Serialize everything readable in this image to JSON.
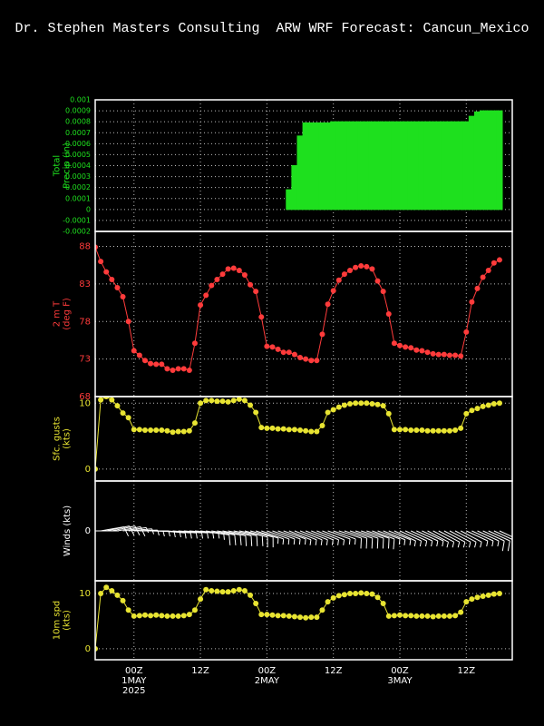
{
  "title": "Dr. Stephen Masters Consulting  ARW WRF Forecast: Cancun_Mexico",
  "chart_data": [
    {
      "type": "bar",
      "ylabel": [
        "Total",
        "Precip (in)"
      ],
      "color": "#1ee01e",
      "grid": true,
      "xlim": [
        -7,
        68.3
      ],
      "xticks": [
        0,
        12,
        24,
        36,
        48,
        60
      ],
      "ylim": [
        -0.0002,
        0.001
      ],
      "yticks": [
        -0.0002,
        -0.0001,
        0,
        0.0001,
        0.0002,
        0.0003,
        0.0004,
        0.0005,
        0.0006,
        0.0007,
        0.0008,
        0.0009,
        0.001
      ],
      "x": [
        -7,
        -6,
        -5,
        -4,
        -3,
        -2,
        -1,
        0,
        1,
        2,
        3,
        4,
        5,
        6,
        7,
        8,
        9,
        10,
        11,
        12,
        13,
        14,
        15,
        16,
        17,
        18,
        19,
        20,
        21,
        22,
        23,
        24,
        25,
        26,
        27,
        28,
        29,
        30,
        31,
        32,
        33,
        34,
        35,
        36,
        37,
        38,
        39,
        40,
        41,
        42,
        43,
        44,
        45,
        46,
        47,
        48,
        49,
        50,
        51,
        52,
        53,
        54,
        55,
        56,
        57,
        58,
        59,
        60,
        61,
        62,
        63,
        64,
        65,
        66
      ],
      "values": [
        0,
        0,
        0,
        0,
        0,
        0,
        0,
        0,
        0,
        0,
        0,
        0,
        0,
        0,
        0,
        0,
        0,
        0,
        0,
        0,
        0,
        0,
        0,
        0,
        0,
        0,
        0,
        0,
        0,
        0,
        0,
        0,
        0,
        0,
        0,
        0.00018,
        0.0004,
        0.00067,
        0.00079,
        0.00079,
        0.00079,
        0.00079,
        0.00079,
        0.0008,
        0.0008,
        0.0008,
        0.0008,
        0.0008,
        0.0008,
        0.0008,
        0.0008,
        0.0008,
        0.0008,
        0.0008,
        0.0008,
        0.0008,
        0.0008,
        0.0008,
        0.0008,
        0.0008,
        0.0008,
        0.0008,
        0.0008,
        0.0008,
        0.0008,
        0.0008,
        0.0008,
        0.0008,
        0.00085,
        0.00089,
        0.0009,
        0.0009,
        0.0009,
        0.0009
      ]
    },
    {
      "type": "line",
      "ylabel": [
        "2 m T",
        "(deg F)"
      ],
      "color": "#ff3b3b",
      "grid": true,
      "xlim": [
        -7,
        68.3
      ],
      "xticks": [
        0,
        12,
        24,
        36,
        48,
        60
      ],
      "ylim": [
        68,
        90
      ],
      "yticks": [
        68,
        73,
        78,
        83,
        88
      ],
      "x": [
        -7,
        -6,
        -5,
        -4,
        -3,
        -2,
        -1,
        0,
        1,
        2,
        3,
        4,
        5,
        6,
        7,
        8,
        9,
        10,
        11,
        12,
        13,
        14,
        15,
        16,
        17,
        18,
        19,
        20,
        21,
        22,
        23,
        24,
        25,
        26,
        27,
        28,
        29,
        30,
        31,
        32,
        33,
        34,
        35,
        36,
        37,
        38,
        39,
        40,
        41,
        42,
        43,
        44,
        45,
        46,
        47,
        48,
        49,
        50,
        51,
        52,
        53,
        54,
        55,
        56,
        57,
        58,
        59,
        60,
        61,
        62,
        63,
        64,
        65,
        66
      ],
      "values": [
        87.9,
        86,
        84.6,
        83.6,
        82.5,
        81.3,
        78,
        74.1,
        73.5,
        72.8,
        72.4,
        72.3,
        72.3,
        71.7,
        71.5,
        71.7,
        71.7,
        71.5,
        75.1,
        80.2,
        81.5,
        82.8,
        83.6,
        84.3,
        85,
        85.1,
        84.8,
        84.2,
        82.9,
        82,
        78.6,
        74.7,
        74.6,
        74.3,
        73.9,
        73.9,
        73.6,
        73.2,
        73,
        72.8,
        72.8,
        76.3,
        80.3,
        82.1,
        83.5,
        84.3,
        84.8,
        85.2,
        85.4,
        85.3,
        85,
        83.4,
        82,
        79,
        75.1,
        74.8,
        74.6,
        74.5,
        74.2,
        74.1,
        73.9,
        73.7,
        73.6,
        73.6,
        73.5,
        73.5,
        73.4,
        76.6,
        80.6,
        82.4,
        83.9,
        84.8,
        85.8,
        86.2
      ]
    },
    {
      "type": "line",
      "ylabel": [
        "Sfc. gusts",
        "(kts)"
      ],
      "color": "#e8e432",
      "grid": true,
      "xlim": [
        -7,
        68.3
      ],
      "xticks": [
        0,
        12,
        24,
        36,
        48,
        60
      ],
      "ylim": [
        -1.8,
        11
      ],
      "yticks": [
        0,
        10
      ],
      "x": [
        -7,
        -6,
        -5,
        -4,
        -3,
        -2,
        -1,
        0,
        1,
        2,
        3,
        4,
        5,
        6,
        7,
        8,
        9,
        10,
        11,
        12,
        13,
        14,
        15,
        16,
        17,
        18,
        19,
        20,
        21,
        22,
        23,
        24,
        25,
        26,
        27,
        28,
        29,
        30,
        31,
        32,
        33,
        34,
        35,
        36,
        37,
        38,
        39,
        40,
        41,
        42,
        43,
        44,
        45,
        46,
        47,
        48,
        49,
        50,
        51,
        52,
        53,
        54,
        55,
        56,
        57,
        58,
        59,
        60,
        61,
        62,
        63,
        64,
        65,
        66
      ],
      "values": [
        0,
        10.5,
        11,
        10.5,
        9.6,
        8.5,
        7.8,
        6,
        6,
        5.9,
        5.9,
        5.9,
        5.9,
        5.8,
        5.6,
        5.7,
        5.7,
        5.8,
        7,
        10,
        10.4,
        10.4,
        10.3,
        10.3,
        10.2,
        10.4,
        10.6,
        10.4,
        9.7,
        8.6,
        6.3,
        6.2,
        6.2,
        6.1,
        6.1,
        6,
        6,
        5.9,
        5.8,
        5.7,
        5.7,
        6.6,
        8.6,
        9,
        9.4,
        9.7,
        9.9,
        10,
        10,
        10,
        9.9,
        9.8,
        9.6,
        8.4,
        6,
        6,
        6,
        5.9,
        5.9,
        5.9,
        5.8,
        5.8,
        5.8,
        5.8,
        5.8,
        5.9,
        6.2,
        8.4,
        8.9,
        9.2,
        9.5,
        9.7,
        9.9,
        10
      ]
    },
    {
      "type": "barb",
      "ylabel": [
        "Winds (kts)"
      ],
      "color": "#ffffff",
      "grid": false,
      "xlim": [
        -7,
        68.3
      ],
      "xticks": [
        0,
        12,
        24,
        36,
        48,
        60
      ],
      "ylim": [
        -1,
        1
      ],
      "yticks": [
        0
      ],
      "x": [
        -7,
        -6,
        -5,
        -4,
        -3,
        -2,
        -1,
        0,
        1,
        2,
        3,
        4,
        5,
        6,
        7,
        8,
        9,
        10,
        11,
        12,
        13,
        14,
        15,
        16,
        17,
        18,
        19,
        20,
        21,
        22,
        23,
        24,
        25,
        26,
        27,
        28,
        29,
        30,
        31,
        32,
        33,
        34,
        35,
        36,
        37,
        38,
        39,
        40,
        41,
        42,
        43,
        44,
        45,
        46,
        47,
        48,
        49,
        50,
        51,
        52,
        53,
        54,
        55,
        56,
        57,
        58,
        59,
        60,
        61,
        62,
        63,
        64,
        65,
        66
      ],
      "values": [
        0,
        10,
        11.1,
        10.5,
        9.7,
        8.7,
        7,
        5.9,
        6,
        6.1,
        6,
        6.1,
        6,
        5.9,
        5.9,
        5.9,
        6,
        6.2,
        7,
        9,
        10.7,
        10.5,
        10.4,
        10.3,
        10.3,
        10.5,
        10.7,
        10.5,
        9.7,
        8.2,
        6.2,
        6.2,
        6.1,
        6,
        6,
        5.9,
        5.8,
        5.7,
        5.6,
        5.7,
        5.7,
        7,
        8.5,
        9.2,
        9.6,
        9.8,
        10,
        10,
        10.1,
        10,
        9.9,
        9.3,
        8.2,
        5.9,
        6,
        6.1,
        6,
        6,
        5.9,
        5.9,
        5.9,
        5.8,
        5.9,
        5.9,
        5.9,
        6,
        6.6,
        8.5,
        9,
        9.3,
        9.5,
        9.7,
        9.9,
        10
      ],
      "directions": [
        90,
        80,
        78,
        78,
        80,
        82,
        85,
        88,
        90,
        90,
        92,
        92,
        95,
        95,
        95,
        95,
        95,
        95,
        95,
        98,
        100,
        100,
        100,
        102,
        102,
        102,
        102,
        105,
        105,
        108,
        110,
        110,
        110,
        110,
        110,
        112,
        112,
        112,
        112,
        112,
        112,
        112,
        110,
        110,
        108,
        108,
        108,
        108,
        108,
        108,
        110,
        110,
        112,
        112,
        115,
        115,
        115,
        115,
        115,
        115,
        118,
        118,
        118,
        118,
        118,
        118,
        118,
        115,
        115,
        115,
        115,
        115,
        115,
        115
      ]
    },
    {
      "type": "line",
      "ylabel": [
        "10m spd",
        "(kts)"
      ],
      "color": "#e8e432",
      "grid": true,
      "xlim": [
        -7,
        68.3
      ],
      "xticks": [
        {
          "value": 0,
          "label": "00Z"
        },
        {
          "value": 12,
          "label": "12Z"
        },
        {
          "value": 24,
          "label": "00Z"
        },
        {
          "value": 36,
          "label": "12Z"
        },
        {
          "value": 48,
          "label": "00Z"
        },
        {
          "value": 60,
          "label": "12Z"
        }
      ],
      "x_date_labels": [
        {
          "value": 0,
          "label": "1MAY"
        },
        {
          "value": 24,
          "label": "2MAY"
        },
        {
          "value": 48,
          "label": "3MAY"
        }
      ],
      "x_year_label": {
        "value": 0,
        "label": "2025"
      },
      "ylim": [
        -2,
        12.3
      ],
      "yticks": [
        0,
        10
      ],
      "x": [
        -7,
        -6,
        -5,
        -4,
        -3,
        -2,
        -1,
        0,
        1,
        2,
        3,
        4,
        5,
        6,
        7,
        8,
        9,
        10,
        11,
        12,
        13,
        14,
        15,
        16,
        17,
        18,
        19,
        20,
        21,
        22,
        23,
        24,
        25,
        26,
        27,
        28,
        29,
        30,
        31,
        32,
        33,
        34,
        35,
        36,
        37,
        38,
        39,
        40,
        41,
        42,
        43,
        44,
        45,
        46,
        47,
        48,
        49,
        50,
        51,
        52,
        53,
        54,
        55,
        56,
        57,
        58,
        59,
        60,
        61,
        62,
        63,
        64,
        65,
        66
      ],
      "values": [
        0,
        10,
        11.1,
        10.5,
        9.7,
        8.7,
        7,
        5.9,
        6,
        6.1,
        6,
        6.1,
        6,
        5.9,
        5.9,
        5.9,
        6,
        6.2,
        7,
        9,
        10.7,
        10.5,
        10.4,
        10.3,
        10.3,
        10.5,
        10.7,
        10.5,
        9.7,
        8.2,
        6.2,
        6.2,
        6.1,
        6,
        6,
        5.9,
        5.8,
        5.7,
        5.6,
        5.7,
        5.7,
        7,
        8.5,
        9.2,
        9.6,
        9.8,
        10,
        10,
        10.1,
        10,
        9.9,
        9.3,
        8.2,
        5.9,
        6,
        6.1,
        6,
        6,
        5.9,
        5.9,
        5.9,
        5.8,
        5.9,
        5.9,
        5.9,
        6,
        6.6,
        8.5,
        9,
        9.3,
        9.5,
        9.7,
        9.9,
        10
      ]
    }
  ]
}
